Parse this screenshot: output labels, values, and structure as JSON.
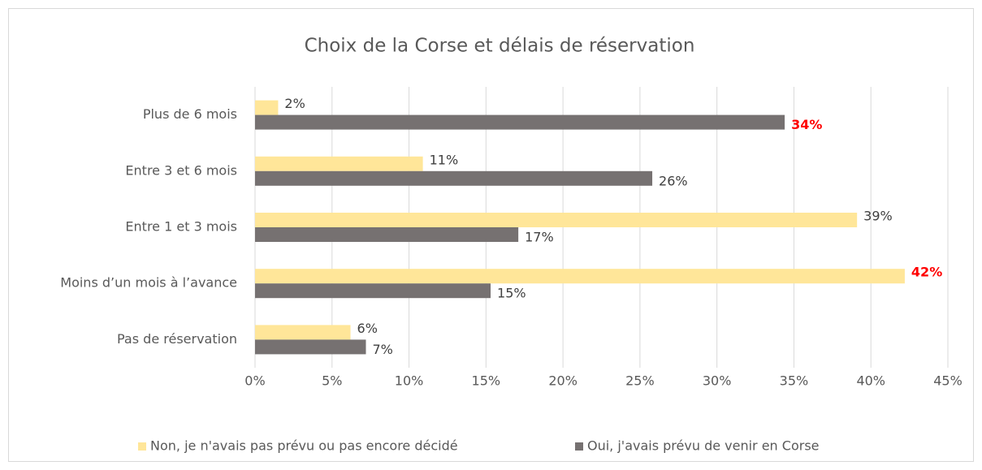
{
  "chart_data": {
    "type": "hbar",
    "title": "Choix de la Corse et délais de réservation",
    "categories": [
      "Plus de 6 mois",
      "Entre 3 et 6 mois",
      "Entre 1 et 3 mois",
      "Moins d’un mois à l’avance",
      "Pas de réservation"
    ],
    "series": [
      {
        "name": "Non, je n'avais pas prévu ou pas encore décidé",
        "color": "#ffe699",
        "values": [
          1.5,
          10.9,
          39.1,
          42.2,
          6.2
        ],
        "value_labels": [
          "2%",
          "11%",
          "39%",
          "42%",
          "6%"
        ],
        "label_colors": [
          "#404040",
          "#404040",
          "#404040",
          "#ff0000",
          "#404040"
        ],
        "label_weights": [
          "normal",
          "normal",
          "normal",
          "bold",
          "normal"
        ]
      },
      {
        "name": "Oui, j'avais prévu de venir en Corse",
        "color": "#767171",
        "values": [
          34.4,
          25.8,
          17.1,
          15.3,
          7.2
        ],
        "value_labels": [
          "34%",
          "26%",
          "17%",
          "15%",
          "7%"
        ],
        "label_colors": [
          "#ff0000",
          "#404040",
          "#404040",
          "#404040",
          "#404040"
        ],
        "label_weights": [
          "bold",
          "normal",
          "normal",
          "normal",
          "normal"
        ]
      }
    ],
    "xlim": [
      0,
      45
    ],
    "xticks": [
      {
        "value": 0,
        "label": "0%"
      },
      {
        "value": 5,
        "label": "5%"
      },
      {
        "value": 10,
        "label": "10%"
      },
      {
        "value": 15,
        "label": "15%"
      },
      {
        "value": 20,
        "label": "20%"
      },
      {
        "value": 25,
        "label": "25%"
      },
      {
        "value": 30,
        "label": "30%"
      },
      {
        "value": 35,
        "label": "35%"
      },
      {
        "value": 40,
        "label": "40%"
      },
      {
        "value": 45,
        "label": "45%"
      }
    ],
    "grid": true,
    "legend": "bottom"
  }
}
